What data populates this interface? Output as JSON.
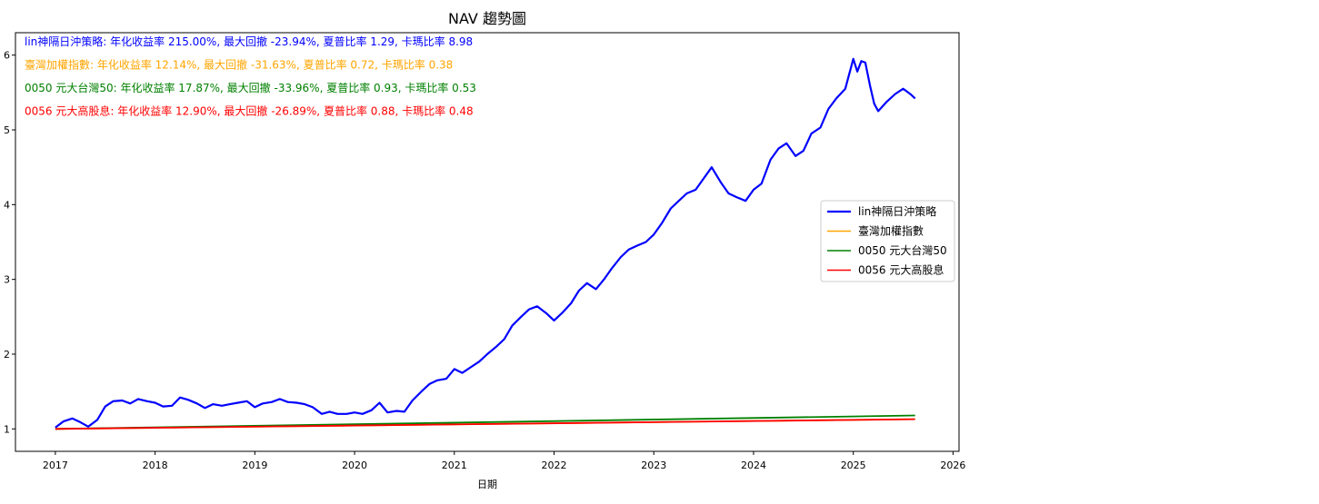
{
  "chart_data": {
    "type": "line",
    "title": "NAV 趨勢圖",
    "xlabel": "日期",
    "ylabel": "",
    "xlim": [
      2016.6,
      2026.06
    ],
    "ylim": [
      0.7,
      6.3
    ],
    "xticks": [
      2017,
      2018,
      2019,
      2020,
      2021,
      2022,
      2023,
      2024,
      2025,
      2026
    ],
    "xtick_labels": [
      "2017",
      "2018",
      "2019",
      "2020",
      "2021",
      "2022",
      "2023",
      "2024",
      "2025",
      "2026"
    ],
    "yticks": [
      1,
      2,
      3,
      4,
      5,
      6
    ],
    "ytick_labels": [
      "1",
      "2",
      "3",
      "4",
      "5",
      "6"
    ],
    "grid": false,
    "legend_position": "center-right",
    "annotations": [
      {
        "text": "lin神隔日沖策略: 年化收益率 215.00%, 最大回撤 -23.94%, 夏普比率 1.29, 卡瑪比率 8.98",
        "color": "#0000ff"
      },
      {
        "text": "臺灣加權指數: 年化收益率 12.14%, 最大回撤 -31.63%, 夏普比率 0.72, 卡瑪比率 0.38",
        "color": "#ffa500"
      },
      {
        "text": "0050 元大台灣50: 年化收益率 17.87%, 最大回撤 -33.96%, 夏普比率 0.93, 卡瑪比率 0.53",
        "color": "#008000"
      },
      {
        "text": "0056 元大高股息: 年化收益率 12.90%, 最大回撤 -26.89%, 夏普比率 0.88, 卡瑪比率 0.48",
        "color": "#ff0000"
      }
    ],
    "series": [
      {
        "name": "lin神隔日沖策略",
        "color": "#0000ff",
        "x": [
          2017.0,
          2017.08,
          2017.17,
          2017.25,
          2017.33,
          2017.42,
          2017.5,
          2017.58,
          2017.67,
          2017.75,
          2017.83,
          2017.92,
          2018.0,
          2018.08,
          2018.17,
          2018.25,
          2018.33,
          2018.42,
          2018.5,
          2018.58,
          2018.67,
          2018.75,
          2018.83,
          2018.92,
          2019.0,
          2019.08,
          2019.17,
          2019.25,
          2019.33,
          2019.42,
          2019.5,
          2019.58,
          2019.67,
          2019.75,
          2019.83,
          2019.92,
          2020.0,
          2020.08,
          2020.17,
          2020.25,
          2020.33,
          2020.42,
          2020.5,
          2020.58,
          2020.67,
          2020.75,
          2020.83,
          2020.92,
          2021.0,
          2021.08,
          2021.17,
          2021.25,
          2021.33,
          2021.42,
          2021.5,
          2021.58,
          2021.67,
          2021.75,
          2021.83,
          2021.92,
          2022.0,
          2022.08,
          2022.17,
          2022.25,
          2022.33,
          2022.42,
          2022.5,
          2022.58,
          2022.67,
          2022.75,
          2022.83,
          2022.92,
          2023.0,
          2023.08,
          2023.17,
          2023.25,
          2023.33,
          2023.42,
          2023.5,
          2023.58,
          2023.67,
          2023.75,
          2023.83,
          2023.92,
          2024.0,
          2024.08,
          2024.17,
          2024.25,
          2024.33,
          2024.42,
          2024.5,
          2024.58,
          2024.67,
          2024.75,
          2024.83,
          2024.92,
          2025.0,
          2025.04,
          2025.08,
          2025.12,
          2025.17,
          2025.21,
          2025.25,
          2025.33,
          2025.42,
          2025.5,
          2025.58,
          2025.62
        ],
        "y": [
          1.02,
          1.1,
          1.14,
          1.09,
          1.03,
          1.12,
          1.3,
          1.37,
          1.38,
          1.34,
          1.4,
          1.37,
          1.35,
          1.3,
          1.31,
          1.42,
          1.39,
          1.34,
          1.28,
          1.33,
          1.31,
          1.33,
          1.35,
          1.37,
          1.29,
          1.34,
          1.36,
          1.4,
          1.36,
          1.35,
          1.33,
          1.29,
          1.2,
          1.23,
          1.2,
          1.2,
          1.22,
          1.2,
          1.25,
          1.35,
          1.22,
          1.24,
          1.23,
          1.38,
          1.5,
          1.6,
          1.65,
          1.67,
          1.8,
          1.75,
          1.83,
          1.9,
          2.0,
          2.1,
          2.2,
          2.38,
          2.5,
          2.6,
          2.64,
          2.55,
          2.45,
          2.55,
          2.68,
          2.85,
          2.95,
          2.87,
          3.0,
          3.15,
          3.3,
          3.4,
          3.45,
          3.5,
          3.6,
          3.75,
          3.95,
          4.05,
          4.15,
          4.2,
          4.35,
          4.5,
          4.3,
          4.15,
          4.1,
          4.05,
          4.2,
          4.28,
          4.6,
          4.75,
          4.82,
          4.65,
          4.72,
          4.95,
          5.03,
          5.28,
          5.42,
          5.55,
          5.95,
          5.78,
          5.92,
          5.9,
          5.58,
          5.35,
          5.25,
          5.37,
          5.48,
          5.55,
          5.47,
          5.42
        ]
      },
      {
        "name": "臺灣加權指數",
        "color": "#ffa500",
        "x": [
          2017.0,
          2025.62
        ],
        "y": [
          1.0,
          1.13
        ]
      },
      {
        "name": "0050 元大台灣50",
        "color": "#008000",
        "x": [
          2017.0,
          2025.62
        ],
        "y": [
          1.0,
          1.18
        ]
      },
      {
        "name": "0056 元大高股息",
        "color": "#ff0000",
        "x": [
          2017.0,
          2025.62
        ],
        "y": [
          1.0,
          1.13
        ]
      }
    ]
  }
}
